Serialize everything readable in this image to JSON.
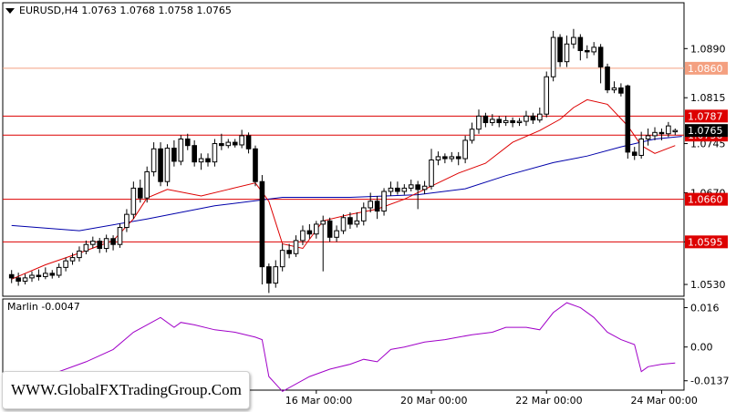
{
  "header": {
    "symbol": "EURUSD,H4",
    "ohlc": "1.0763 1.0768 1.0758 1.0765"
  },
  "indicator_label": "Marlin -0.0047",
  "watermark": "WWW.GlobalFXTradingGroup.Com",
  "colors": {
    "candle": "#000000",
    "red_line": "#dd0000",
    "blue_ma": "#0000aa",
    "red_ma": "#dd0000",
    "orange_line": "#f4a080",
    "orange_label": "#f4a080",
    "oscillator": "#a000c8",
    "price_marker": "#000000"
  },
  "chart_data": [
    {
      "type": "candlestick",
      "symbol": "EURUSD",
      "timeframe": "H4",
      "ylim": [
        1.0512,
        1.096
      ],
      "y_ticks": [
        1.053,
        1.0595,
        1.067,
        1.0745,
        1.0815,
        1.089
      ],
      "x_labels": [
        "16 Mar 00:00",
        "20 Mar 00:00",
        "22 Mar 00:00",
        "24 Mar 00:00"
      ],
      "current_price": 1.0765,
      "horizontal_levels": [
        {
          "label": "1.0860",
          "value": 1.086,
          "color": "#f4a080"
        },
        {
          "label": "1.0787",
          "value": 1.0787,
          "color": "#dd0000"
        },
        {
          "label": "1.0758",
          "value": 1.0758,
          "color": "#dd0000"
        },
        {
          "label": "1.0660",
          "value": 1.066,
          "color": "#dd0000"
        },
        {
          "label": "1.0595",
          "value": 1.0595,
          "color": "#dd0000"
        }
      ],
      "candles": [
        [
          1.0545,
          1.054,
          1.0552,
          1.0532
        ],
        [
          1.054,
          1.0535,
          1.0548,
          1.0528
        ],
        [
          1.0535,
          1.054,
          1.0546,
          1.053
        ],
        [
          1.054,
          1.0544,
          1.055,
          1.0534
        ],
        [
          1.0544,
          1.0542,
          1.0553,
          1.0536
        ],
        [
          1.0542,
          1.0547,
          1.0556,
          1.0538
        ],
        [
          1.0547,
          1.0544,
          1.0552,
          1.0539
        ],
        [
          1.0544,
          1.0556,
          1.0562,
          1.054
        ],
        [
          1.0556,
          1.0566,
          1.0571,
          1.055
        ],
        [
          1.0566,
          1.0571,
          1.0578,
          1.056
        ],
        [
          1.0571,
          1.0581,
          1.0588,
          1.0565
        ],
        [
          1.0581,
          1.0591,
          1.0597,
          1.0576
        ],
        [
          1.0591,
          1.0596,
          1.0603,
          1.0585
        ],
        [
          1.0596,
          1.0585,
          1.0601,
          1.0578
        ],
        [
          1.0585,
          1.06,
          1.0606,
          1.0579
        ],
        [
          1.06,
          1.0591,
          1.0605,
          1.0582
        ],
        [
          1.0591,
          1.0617,
          1.0623,
          1.0586
        ],
        [
          1.0617,
          1.0637,
          1.0645,
          1.061
        ],
        [
          1.0637,
          1.0677,
          1.0687,
          1.063
        ],
        [
          1.0677,
          1.0662,
          1.069,
          1.0655
        ],
        [
          1.0662,
          1.0702,
          1.071,
          1.0655
        ],
        [
          1.0702,
          1.0737,
          1.0747,
          1.0695
        ],
        [
          1.0737,
          1.0687,
          1.0747,
          1.068
        ],
        [
          1.0687,
          1.0738,
          1.0744,
          1.068
        ],
        [
          1.0738,
          1.0718,
          1.075,
          1.071
        ],
        [
          1.0718,
          1.0752,
          1.0758,
          1.0712
        ],
        [
          1.0752,
          1.0742,
          1.076,
          1.0735
        ],
        [
          1.0742,
          1.0717,
          1.075,
          1.071
        ],
        [
          1.0717,
          1.0722,
          1.073,
          1.0705
        ],
        [
          1.0722,
          1.0717,
          1.073,
          1.071
        ],
        [
          1.0717,
          1.0745,
          1.0752,
          1.071
        ],
        [
          1.0745,
          1.0742,
          1.076,
          1.0735
        ],
        [
          1.0742,
          1.0747,
          1.0752,
          1.0738
        ],
        [
          1.0747,
          1.0743,
          1.0752,
          1.0739
        ],
        [
          1.0743,
          1.0757,
          1.0766,
          1.0738
        ],
        [
          1.0757,
          1.0737,
          1.0762,
          1.073
        ],
        [
          1.0737,
          1.0687,
          1.0742,
          1.068
        ],
        [
          1.0687,
          1.0557,
          1.0697,
          1.053
        ],
        [
          1.0557,
          1.0532,
          1.0562,
          1.0517
        ],
        [
          1.0532,
          1.0557,
          1.0567,
          1.0525
        ],
        [
          1.0557,
          1.0582,
          1.0592,
          1.055
        ],
        [
          1.0582,
          1.0577,
          1.0592,
          1.057
        ],
        [
          1.0577,
          1.0597,
          1.0605,
          1.0572
        ],
        [
          1.0597,
          1.0612,
          1.062,
          1.059
        ],
        [
          1.0612,
          1.0607,
          1.0622,
          1.06
        ],
        [
          1.0607,
          1.0622,
          1.0627,
          1.06
        ],
        [
          1.0622,
          1.0627,
          1.0635,
          1.055
        ],
        [
          1.0627,
          1.0602,
          1.0632,
          1.0595
        ],
        [
          1.0602,
          1.0612,
          1.062,
          1.0595
        ],
        [
          1.0612,
          1.0632,
          1.0637,
          1.0607
        ],
        [
          1.0632,
          1.0622,
          1.064,
          1.0615
        ],
        [
          1.0622,
          1.0627,
          1.064,
          1.0617
        ],
        [
          1.0627,
          1.0647,
          1.0655,
          1.062
        ],
        [
          1.0647,
          1.0657,
          1.067,
          1.064
        ],
        [
          1.0657,
          1.0642,
          1.0665,
          1.063
        ],
        [
          1.0642,
          1.0672,
          1.0677,
          1.0635
        ],
        [
          1.0672,
          1.0677,
          1.0687,
          1.0665
        ],
        [
          1.0677,
          1.0672,
          1.0687,
          1.0667
        ],
        [
          1.0672,
          1.0677,
          1.0683,
          1.0667
        ],
        [
          1.0677,
          1.0682,
          1.069,
          1.0672
        ],
        [
          1.0682,
          1.0675,
          1.0688,
          1.0645
        ],
        [
          1.0675,
          1.068,
          1.0688,
          1.0668
        ],
        [
          1.068,
          1.072,
          1.0737,
          1.0675
        ],
        [
          1.072,
          1.0725,
          1.0733,
          1.0712
        ],
        [
          1.0725,
          1.0722,
          1.073,
          1.0715
        ],
        [
          1.0722,
          1.0725,
          1.0732,
          1.0717
        ],
        [
          1.0725,
          1.0722,
          1.0732,
          1.0712
        ],
        [
          1.0722,
          1.075,
          1.0757,
          1.0715
        ],
        [
          1.075,
          1.0767,
          1.0777,
          1.0745
        ],
        [
          1.0767,
          1.0787,
          1.0797,
          1.076
        ],
        [
          1.0787,
          1.0777,
          1.0792,
          1.077
        ],
        [
          1.0777,
          1.0782,
          1.079,
          1.0772
        ],
        [
          1.0782,
          1.0777,
          1.0787,
          1.077
        ],
        [
          1.0777,
          1.078,
          1.0787,
          1.0772
        ],
        [
          1.078,
          1.0777,
          1.0785,
          1.077
        ],
        [
          1.0777,
          1.0779,
          1.0784,
          1.0772
        ],
        [
          1.0779,
          1.0787,
          1.0795,
          1.0772
        ],
        [
          1.0787,
          1.0781,
          1.0792,
          1.0775
        ],
        [
          1.0781,
          1.079,
          1.08,
          1.0777
        ],
        [
          1.079,
          1.0847,
          1.0855,
          1.0785
        ],
        [
          1.0847,
          1.0907,
          1.0917,
          1.084
        ],
        [
          1.0907,
          1.087,
          1.0912,
          1.0862
        ],
        [
          1.087,
          1.0897,
          1.091,
          1.0862
        ],
        [
          1.0897,
          1.0907,
          1.092,
          1.089
        ],
        [
          1.0907,
          1.0887,
          1.0912,
          1.0872
        ],
        [
          1.0887,
          1.0885,
          1.0895,
          1.0875
        ],
        [
          1.0885,
          1.0892,
          1.09,
          1.088
        ],
        [
          1.0892,
          1.0862,
          1.0897,
          1.0837
        ],
        [
          1.0862,
          1.0827,
          1.0867,
          1.0822
        ],
        [
          1.0827,
          1.083,
          1.084,
          1.0822
        ],
        [
          1.083,
          1.0822,
          1.0837,
          1.0817
        ],
        [
          1.0833,
          1.0732,
          1.0835,
          1.0722
        ],
        [
          1.0732,
          1.0727,
          1.074,
          1.072
        ],
        [
          1.0727,
          1.0752,
          1.0763,
          1.0722
        ],
        [
          1.0752,
          1.0757,
          1.0768,
          1.0742
        ],
        [
          1.0757,
          1.0762,
          1.077,
          1.075
        ],
        [
          1.0762,
          1.076,
          1.0768,
          1.075
        ],
        [
          1.076,
          1.0772,
          1.0778,
          1.0755
        ],
        [
          1.0763,
          1.0765,
          1.0768,
          1.0758
        ]
      ],
      "blue_ma": [
        [
          0,
          1.062
        ],
        [
          10,
          1.0612
        ],
        [
          20,
          1.063
        ],
        [
          30,
          1.065
        ],
        [
          40,
          1.0663
        ],
        [
          50,
          1.0663
        ],
        [
          60,
          1.0667
        ],
        [
          67,
          1.0676
        ],
        [
          73,
          1.0696
        ],
        [
          80,
          1.0716
        ],
        [
          85,
          1.0726
        ],
        [
          90,
          1.074
        ],
        [
          95,
          1.0752
        ],
        [
          99,
          1.0756
        ]
      ],
      "red_ma": [
        [
          0,
          1.0538
        ],
        [
          5,
          1.056
        ],
        [
          10,
          1.0578
        ],
        [
          15,
          1.0597
        ],
        [
          18,
          1.063
        ],
        [
          20,
          1.0662
        ],
        [
          23,
          1.0675
        ],
        [
          28,
          1.0665
        ],
        [
          32,
          1.0675
        ],
        [
          36,
          1.0685
        ],
        [
          38,
          1.0657
        ],
        [
          40,
          1.0592
        ],
        [
          43,
          1.0585
        ],
        [
          46,
          1.0627
        ],
        [
          50,
          1.0637
        ],
        [
          54,
          1.0645
        ],
        [
          58,
          1.066
        ],
        [
          62,
          1.068
        ],
        [
          66,
          1.07
        ],
        [
          70,
          1.0715
        ],
        [
          74,
          1.0747
        ],
        [
          78,
          1.0765
        ],
        [
          81,
          1.0782
        ],
        [
          83,
          1.08
        ],
        [
          85,
          1.0812
        ],
        [
          88,
          1.0805
        ],
        [
          91,
          1.0772
        ],
        [
          93,
          1.0742
        ],
        [
          95,
          1.073
        ],
        [
          98,
          1.0742
        ]
      ],
      "x_label_positions": [
        45,
        62,
        79,
        96
      ]
    },
    {
      "type": "line",
      "name": "Marlin -0.0047",
      "ylim": [
        -0.0175,
        0.0195
      ],
      "y_ticks": [
        -0.0137,
        0.0,
        0.016
      ],
      "y_tick_labels": [
        "-0.0137",
        "0.00",
        "0.016"
      ],
      "values": [
        [
          0,
          -0.012
        ],
        [
          6,
          -0.011
        ],
        [
          11,
          -0.006
        ],
        [
          15,
          -0.001
        ],
        [
          18,
          0.006
        ],
        [
          20,
          0.009
        ],
        [
          22,
          0.012
        ],
        [
          24,
          0.008
        ],
        [
          25,
          0.01
        ],
        [
          27,
          0.009
        ],
        [
          30,
          0.007
        ],
        [
          33,
          0.006
        ],
        [
          36,
          0.004
        ],
        [
          37,
          0.003
        ],
        [
          38,
          -0.012
        ],
        [
          40,
          -0.018
        ],
        [
          44,
          -0.012
        ],
        [
          47,
          -0.009
        ],
        [
          50,
          -0.007
        ],
        [
          52,
          -0.005
        ],
        [
          54,
          -0.006
        ],
        [
          56,
          -0.001
        ],
        [
          58,
          0.0
        ],
        [
          61,
          0.002
        ],
        [
          64,
          0.003
        ],
        [
          66,
          0.004
        ],
        [
          68,
          0.005
        ],
        [
          71,
          0.006
        ],
        [
          73,
          0.008
        ],
        [
          76,
          0.008
        ],
        [
          78,
          0.007
        ],
        [
          80,
          0.014
        ],
        [
          82,
          0.018
        ],
        [
          84,
          0.016
        ],
        [
          86,
          0.012
        ],
        [
          88,
          0.006
        ],
        [
          90,
          0.003
        ],
        [
          92,
          0.001
        ],
        [
          93,
          -0.01
        ],
        [
          94,
          -0.008
        ],
        [
          96,
          -0.007
        ],
        [
          98,
          -0.0065
        ]
      ]
    }
  ]
}
